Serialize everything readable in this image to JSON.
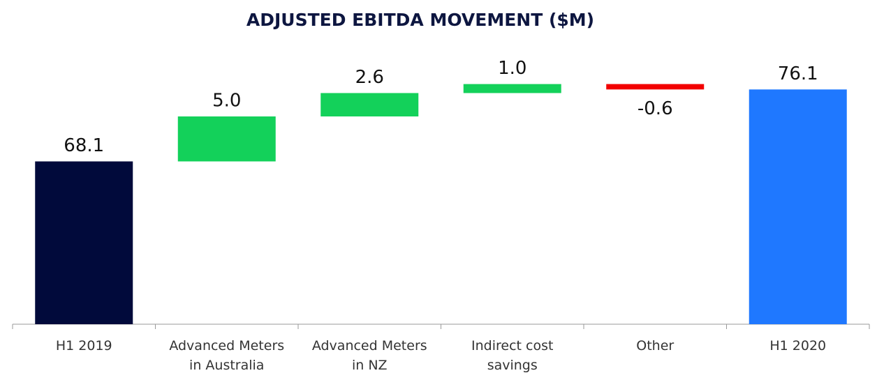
{
  "chart_data": {
    "type": "waterfall",
    "title": "ADJUSTED EBITDA MOVEMENT ($M)",
    "categories": [
      "H1 2019",
      "Advanced Meters in Australia",
      "Advanced Meters in NZ",
      "Indirect cost savings",
      "Other",
      "H1 2020"
    ],
    "values": [
      68.1,
      5.0,
      2.6,
      1.0,
      -0.6,
      76.1
    ],
    "value_labels": [
      "68.1",
      "5.0",
      "2.6",
      "1.0",
      "-0.6",
      "76.1"
    ],
    "measure": [
      "total",
      "relative",
      "relative",
      "relative",
      "relative",
      "total"
    ],
    "colors": [
      "#010a3b",
      "#13d15a",
      "#13d15a",
      "#13d15a",
      "#f20000",
      "#1f78ff"
    ],
    "ylim": [
      50,
      80
    ]
  }
}
